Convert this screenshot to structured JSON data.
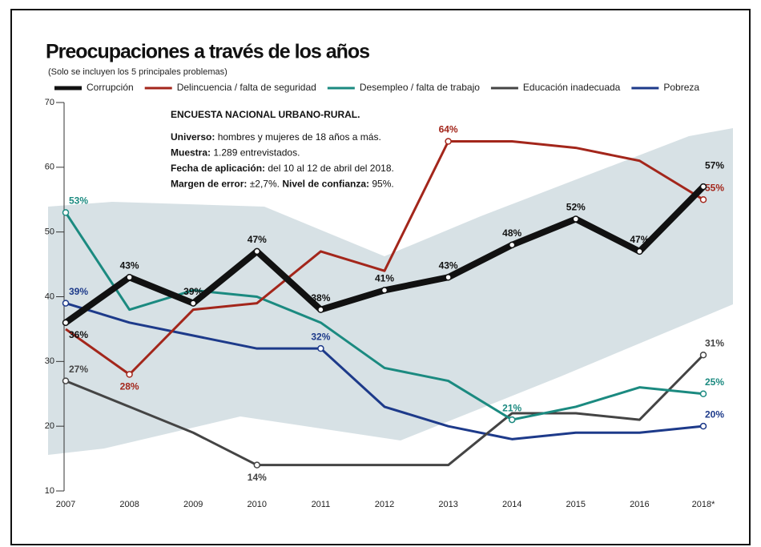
{
  "chart_data": {
    "type": "line",
    "title": "Preocupaciones a través de los años",
    "subtitle": "(Solo se incluyen los 5 principales problemas)",
    "categories": [
      "2007",
      "2008",
      "2009",
      "2010",
      "2011",
      "2012",
      "2013",
      "2014",
      "2015",
      "2016",
      "2018*"
    ],
    "ylim": [
      10,
      70
    ],
    "yticks": [
      10,
      20,
      30,
      40,
      50,
      60,
      70
    ],
    "series": [
      {
        "name": "Corrupción",
        "color": "#111111",
        "values": [
          36,
          43,
          39,
          47,
          38,
          41,
          43,
          48,
          52,
          47,
          57
        ],
        "value_labels": [
          "36%",
          "43%",
          "39%",
          "47%",
          "38%",
          "41%",
          "43%",
          "48%",
          "52%",
          "47%",
          "57%"
        ]
      },
      {
        "name": "Delincuencia / falta de seguridad",
        "color": "#a3261b",
        "values": [
          35,
          28,
          38,
          39,
          47,
          44,
          64,
          64,
          63,
          61,
          55
        ],
        "value_labels": [
          null,
          "28%",
          null,
          null,
          null,
          null,
          "64%",
          null,
          null,
          null,
          "55%"
        ]
      },
      {
        "name": "Desempleo / falta de trabajo",
        "color": "#1b8a80",
        "values": [
          53,
          38,
          41,
          40,
          36,
          29,
          27,
          21,
          23,
          26,
          25
        ],
        "value_labels": [
          "53%",
          null,
          null,
          null,
          null,
          null,
          null,
          "21%",
          null,
          null,
          "25%"
        ]
      },
      {
        "name": "Educación inadecuada",
        "color": "#444444",
        "values": [
          27,
          23,
          19,
          14,
          14,
          14,
          14,
          22,
          22,
          21,
          31
        ],
        "value_labels": [
          "27%",
          null,
          null,
          "14%",
          null,
          null,
          null,
          null,
          null,
          null,
          "31%"
        ]
      },
      {
        "name": "Pobreza",
        "color": "#1d3a8a",
        "values": [
          39,
          36,
          34,
          32,
          32,
          23,
          20,
          18,
          19,
          19,
          20
        ],
        "value_labels": [
          "39%",
          null,
          null,
          null,
          "32%",
          null,
          null,
          null,
          null,
          null,
          "20%"
        ]
      }
    ],
    "survey": {
      "title": "ENCUESTA NACIONAL URBANO-RURAL.",
      "lines": [
        [
          {
            "label": "Universo:",
            "text": " hombres y mujeres de 18 años a más."
          }
        ],
        [
          {
            "label": "Muestra:",
            "text": " 1.289 entrevistados."
          }
        ],
        [
          {
            "label": "Fecha de aplicación:",
            "text": "  del 10 al 12 de abril del 2018."
          }
        ],
        [
          {
            "label": "Margen de error:",
            "text": " ±2,7%. "
          },
          {
            "label": "Nivel de confianza:",
            "text": " 95%."
          }
        ]
      ]
    }
  }
}
